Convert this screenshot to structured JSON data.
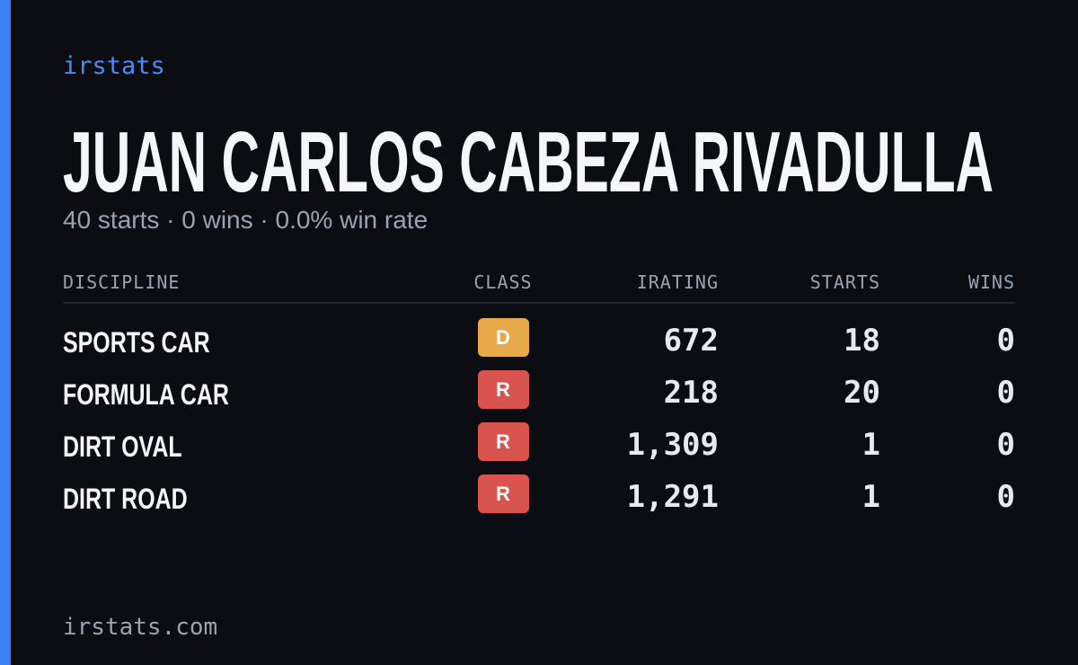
{
  "brand": "irstats",
  "driver": {
    "name": "JUAN CARLOS CABEZA RIVADULLA",
    "summary": "40 starts · 0 wins · 0.0% win rate"
  },
  "table": {
    "headers": [
      "DISCIPLINE",
      "CLASS",
      "IRATING",
      "STARTS",
      "WINS"
    ],
    "rows": [
      {
        "discipline": "SPORTS CAR",
        "class": "D",
        "class_color": "#e8a94a",
        "irating": "672",
        "starts": "18",
        "wins": "0"
      },
      {
        "discipline": "FORMULA CAR",
        "class": "R",
        "class_color": "#d9534f",
        "irating": "218",
        "starts": "20",
        "wins": "0"
      },
      {
        "discipline": "DIRT OVAL",
        "class": "R",
        "class_color": "#d9534f",
        "irating": "1,309",
        "starts": "1",
        "wins": "0"
      },
      {
        "discipline": "DIRT ROAD",
        "class": "R",
        "class_color": "#d9534f",
        "irating": "1,291",
        "starts": "1",
        "wins": "0"
      }
    ]
  },
  "footer": "irstats.com"
}
